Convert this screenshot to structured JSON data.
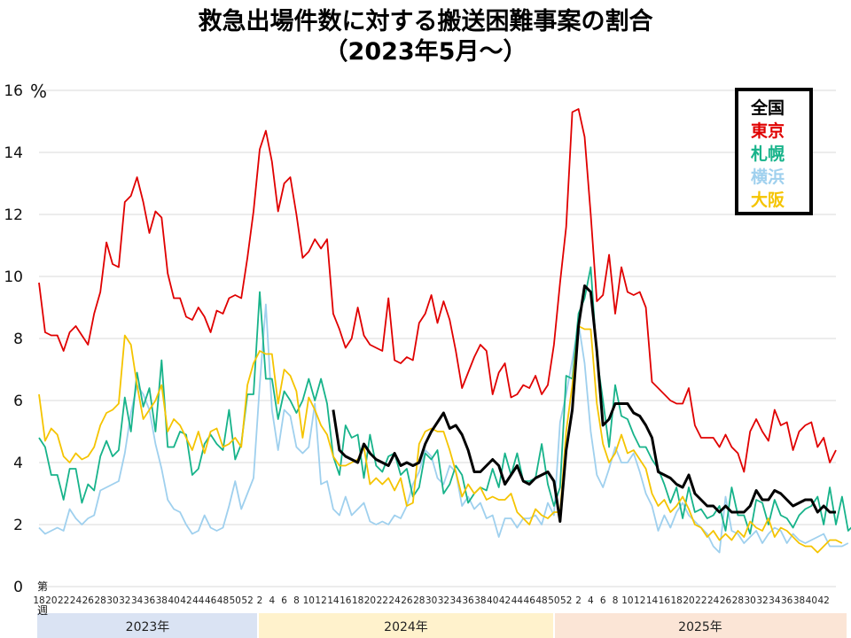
{
  "chart_data": {
    "type": "line",
    "title_line1": "救急出場件数に対する搬送困難事案の割合",
    "title_line2": "（2023年5月～）",
    "y_unit": "%",
    "ylabel": "第\n週",
    "ylim": [
      0,
      16
    ],
    "yticks": [
      0,
      2,
      4,
      6,
      8,
      10,
      12,
      14,
      16
    ],
    "x_tick_labels": [
      "18",
      "20",
      "22",
      "24",
      "26",
      "28",
      "30",
      "32",
      "34",
      "36",
      "38",
      "40",
      "42",
      "44",
      "46",
      "48",
      "50",
      "52",
      "2",
      "4",
      "6",
      "8",
      "10",
      "12",
      "14",
      "16",
      "18",
      "20",
      "22",
      "24",
      "26",
      "28",
      "30",
      "32",
      "34",
      "36",
      "38",
      "40",
      "42",
      "44",
      "46",
      "48",
      "50",
      "52",
      "2",
      "4",
      "6",
      "8",
      "10",
      "12",
      "14",
      "16",
      "18",
      "20",
      "22",
      "24",
      "26",
      "28",
      "30",
      "32",
      "34",
      "36",
      "38",
      "40",
      "42"
    ],
    "years": [
      {
        "label": "2023年",
        "color": "#dae3f3"
      },
      {
        "label": "2024年",
        "color": "#fff2cc"
      },
      {
        "label": "2025年",
        "color": "#fbe5d6"
      }
    ],
    "legend_position": "top-right",
    "series": [
      {
        "name": "全国",
        "color": "#000000",
        "start": 48,
        "values": [
          5.7,
          4.4,
          4.2,
          4.1,
          4.0,
          4.6,
          4.3,
          4.1,
          4.0,
          3.9,
          4.3,
          3.9,
          4.0,
          3.9,
          4.0,
          4.6,
          5.0,
          5.3,
          5.6,
          5.1,
          5.2,
          4.9,
          4.4,
          3.7,
          3.7,
          3.9,
          4.1,
          3.9,
          3.3,
          3.6,
          3.9,
          3.4,
          3.3,
          3.5,
          3.6,
          3.7,
          3.4,
          2.1,
          4.4,
          5.7,
          8.4,
          9.7,
          9.5,
          7.6,
          5.2,
          5.4,
          5.9,
          5.9,
          5.9,
          5.6,
          5.5,
          5.2,
          4.8,
          3.7,
          3.6,
          3.5,
          3.3,
          3.2,
          3.6,
          3.0,
          2.8,
          2.6,
          2.6,
          2.4,
          2.6,
          2.4,
          2.4,
          2.4,
          2.6,
          3.1,
          2.8,
          2.8,
          3.1,
          3.0,
          2.8,
          2.6,
          2.7,
          2.8,
          2.8,
          2.4,
          2.6,
          2.4,
          2.4
        ]
      },
      {
        "name": "東京",
        "color": "#e00000",
        "start": 0,
        "values": [
          9.8,
          8.2,
          8.1,
          8.1,
          7.6,
          8.2,
          8.4,
          8.1,
          7.8,
          8.8,
          9.5,
          11.1,
          10.4,
          10.3,
          12.4,
          12.6,
          13.2,
          12.4,
          11.4,
          12.1,
          11.9,
          10.1,
          9.3,
          9.3,
          8.7,
          8.6,
          9.0,
          8.7,
          8.2,
          8.9,
          8.8,
          9.3,
          9.4,
          9.3,
          10.6,
          12.1,
          14.1,
          14.7,
          13.7,
          12.1,
          13.0,
          13.2,
          12.0,
          10.6,
          10.8,
          11.2,
          10.9,
          11.2,
          8.8,
          8.3,
          7.7,
          8.0,
          9.0,
          8.1,
          7.8,
          7.7,
          7.6,
          9.3,
          7.3,
          7.2,
          7.4,
          7.3,
          8.5,
          8.8,
          9.4,
          8.5,
          9.2,
          8.6,
          7.6,
          6.4,
          6.9,
          7.4,
          7.8,
          7.6,
          6.2,
          6.9,
          7.2,
          6.1,
          6.2,
          6.5,
          6.4,
          6.8,
          6.2,
          6.5,
          7.8,
          9.8,
          11.6,
          15.3,
          15.4,
          14.5,
          12.0,
          9.2,
          9.4,
          10.7,
          8.8,
          10.3,
          9.5,
          9.4,
          9.5,
          9.0,
          6.6,
          6.4,
          6.2,
          6.0,
          5.9,
          5.9,
          6.4,
          5.2,
          4.8,
          4.8,
          4.8,
          4.5,
          4.9,
          4.5,
          4.3,
          3.7,
          5.0,
          5.4,
          5.0,
          4.7,
          5.7,
          5.2,
          5.3,
          4.4,
          5.0,
          5.2,
          5.3,
          4.5,
          4.8,
          4.0,
          4.4
        ]
      },
      {
        "name": "札幌",
        "color": "#17b38a",
        "start": 0,
        "values": [
          4.8,
          4.5,
          3.6,
          3.6,
          2.8,
          3.8,
          3.8,
          2.7,
          3.3,
          3.1,
          4.2,
          4.7,
          4.2,
          4.4,
          6.1,
          5.0,
          6.9,
          5.8,
          6.4,
          5.0,
          7.3,
          4.5,
          4.5,
          5.0,
          4.9,
          3.6,
          3.8,
          4.6,
          4.9,
          4.6,
          4.4,
          5.7,
          4.1,
          4.6,
          6.2,
          6.2,
          9.5,
          6.7,
          6.7,
          5.4,
          6.3,
          6.0,
          5.6,
          6.0,
          6.7,
          6.0,
          6.7,
          5.9,
          4.2,
          3.6,
          5.2,
          4.8,
          4.9,
          3.5,
          4.9,
          3.9,
          3.7,
          4.2,
          4.3,
          3.6,
          3.8,
          2.9,
          3.2,
          4.3,
          4.1,
          4.4,
          3.0,
          3.3,
          3.9,
          3.6,
          2.7,
          3.0,
          3.2,
          3.1,
          3.8,
          3.2,
          4.3,
          3.6,
          4.3,
          3.4,
          3.4,
          3.5,
          4.6,
          3.3,
          2.6,
          3.2,
          6.8,
          6.7,
          8.8,
          9.3,
          10.3,
          7.4,
          6.0,
          4.5,
          6.5,
          5.5,
          5.4,
          4.9,
          4.5,
          4.5,
          4.1,
          3.8,
          3.3,
          2.7,
          3.2,
          2.2,
          3.2,
          2.4,
          2.5,
          2.2,
          2.3,
          2.6,
          1.8,
          3.2,
          2.3,
          2.3,
          1.7,
          2.8,
          2.7,
          2.0,
          2.8,
          2.3,
          2.2,
          1.9,
          2.3,
          2.5,
          2.6,
          2.9,
          2.0,
          3.2,
          2.0,
          2.9,
          1.8,
          2.0
        ]
      },
      {
        "name": "横浜",
        "color": "#9fd0ee",
        "start": 0,
        "values": [
          1.9,
          1.7,
          1.8,
          1.9,
          1.8,
          2.5,
          2.2,
          2.0,
          2.2,
          2.3,
          3.1,
          3.2,
          3.3,
          3.4,
          4.3,
          5.6,
          6.5,
          6.2,
          5.7,
          4.6,
          3.8,
          2.8,
          2.5,
          2.4,
          2.0,
          1.7,
          1.8,
          2.3,
          1.9,
          1.8,
          1.9,
          2.6,
          3.4,
          2.5,
          3.0,
          3.5,
          6.5,
          9.1,
          5.7,
          4.4,
          5.7,
          5.5,
          4.5,
          4.3,
          4.5,
          5.9,
          3.3,
          3.4,
          2.5,
          2.3,
          2.9,
          2.3,
          2.5,
          2.7,
          2.1,
          2.0,
          2.1,
          2.0,
          2.3,
          2.2,
          2.6,
          3.3,
          3.7,
          4.4,
          4.2,
          3.5,
          3.3,
          3.9,
          3.7,
          2.6,
          2.9,
          2.5,
          2.7,
          2.2,
          2.3,
          1.6,
          2.2,
          2.2,
          1.9,
          2.2,
          2.2,
          2.3,
          2.0,
          2.7,
          2.3,
          5.3,
          6.2,
          7.3,
          8.5,
          7.2,
          5.0,
          3.6,
          3.2,
          3.8,
          4.5,
          4.0,
          4.0,
          4.3,
          3.7,
          3.0,
          2.6,
          1.8,
          2.3,
          1.9,
          2.4,
          2.7,
          2.3,
          2.1,
          1.9,
          1.7,
          1.3,
          1.1,
          2.9,
          1.8,
          1.7,
          1.4,
          1.6,
          1.8,
          1.4,
          1.7,
          1.9,
          1.8,
          1.4,
          1.7,
          1.5,
          1.4,
          1.5,
          1.6,
          1.7,
          1.3,
          1.3,
          1.3,
          1.4
        ]
      },
      {
        "name": "大阪",
        "color": "#f5c400",
        "start": 0,
        "values": [
          6.2,
          4.7,
          5.1,
          4.9,
          4.2,
          4.0,
          4.3,
          4.1,
          4.2,
          4.5,
          5.2,
          5.6,
          5.7,
          5.9,
          8.1,
          7.8,
          6.5,
          5.4,
          5.7,
          6.0,
          6.5,
          5.0,
          5.4,
          5.2,
          4.8,
          4.4,
          5.0,
          4.3,
          5.0,
          5.1,
          4.5,
          4.6,
          4.8,
          4.5,
          6.5,
          7.2,
          7.6,
          7.5,
          7.5,
          5.9,
          7.0,
          6.8,
          6.3,
          4.8,
          6.1,
          5.7,
          5.2,
          4.9,
          4.2,
          3.9,
          3.9,
          4.0,
          4.1,
          4.5,
          3.3,
          3.5,
          3.3,
          3.5,
          3.1,
          3.5,
          2.6,
          2.7,
          4.6,
          5.0,
          5.1,
          5.0,
          5.0,
          4.4,
          3.7,
          2.9,
          3.3,
          3.0,
          3.2,
          2.8,
          2.9,
          2.8,
          2.8,
          3.0,
          2.4,
          2.2,
          2.0,
          2.5,
          2.3,
          2.2,
          2.4,
          2.4,
          5.0,
          6.5,
          8.4,
          8.3,
          8.3,
          5.9,
          4.6,
          4.0,
          4.3,
          4.9,
          4.3,
          4.4,
          4.1,
          3.8,
          3.0,
          2.6,
          2.8,
          2.4,
          2.6,
          2.9,
          2.5,
          2.0,
          1.9,
          1.6,
          1.8,
          1.5,
          1.7,
          1.5,
          1.8,
          1.6,
          2.1,
          1.9,
          1.8,
          2.2,
          1.6,
          1.9,
          1.8,
          1.6,
          1.4,
          1.3,
          1.3,
          1.1,
          1.3,
          1.5,
          1.5,
          1.4
        ]
      }
    ]
  }
}
